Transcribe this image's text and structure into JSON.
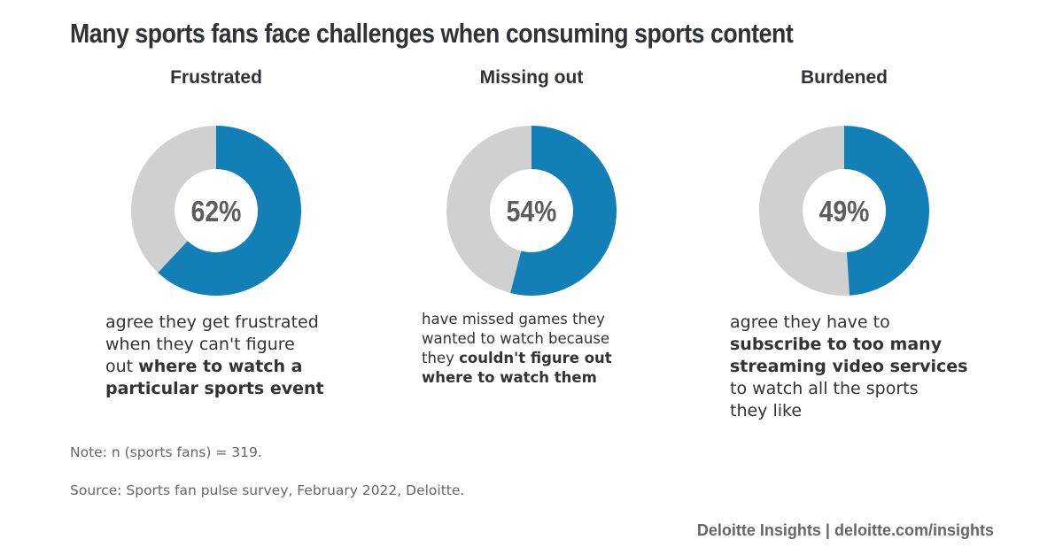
{
  "chart_data": {
    "type": "pie",
    "title": "Many sports fans face challenges when consuming sports content",
    "charts": [
      {
        "label": "Frustrated",
        "value": 62,
        "value_label": "62%",
        "desc": [
          "agree they get frustrated",
          "when they can't figure",
          "out ",
          "where to watch a",
          "particular sports event"
        ]
      },
      {
        "label": "Missing out",
        "value": 54,
        "value_label": "54%",
        "desc": [
          "have missed games they",
          "wanted to watch because",
          "they ",
          "couldn't figure out",
          "where to watch them"
        ]
      },
      {
        "label": "Burdened",
        "value": 49,
        "value_label": "49%",
        "desc": [
          "agree they have to",
          "subscribe to too many",
          "streaming video services",
          "to watch all the sports",
          "they like"
        ]
      }
    ],
    "colors": {
      "highlight": "#127fb7",
      "remainder": "#d0d0d0",
      "value_text": "#5a5c60"
    }
  },
  "note": "Note: n (sports fans) = 319.",
  "source": "Source: Sports fan pulse survey, February 2022, Deloitte.",
  "footer": "Deloitte Insights | deloitte.com/insights"
}
